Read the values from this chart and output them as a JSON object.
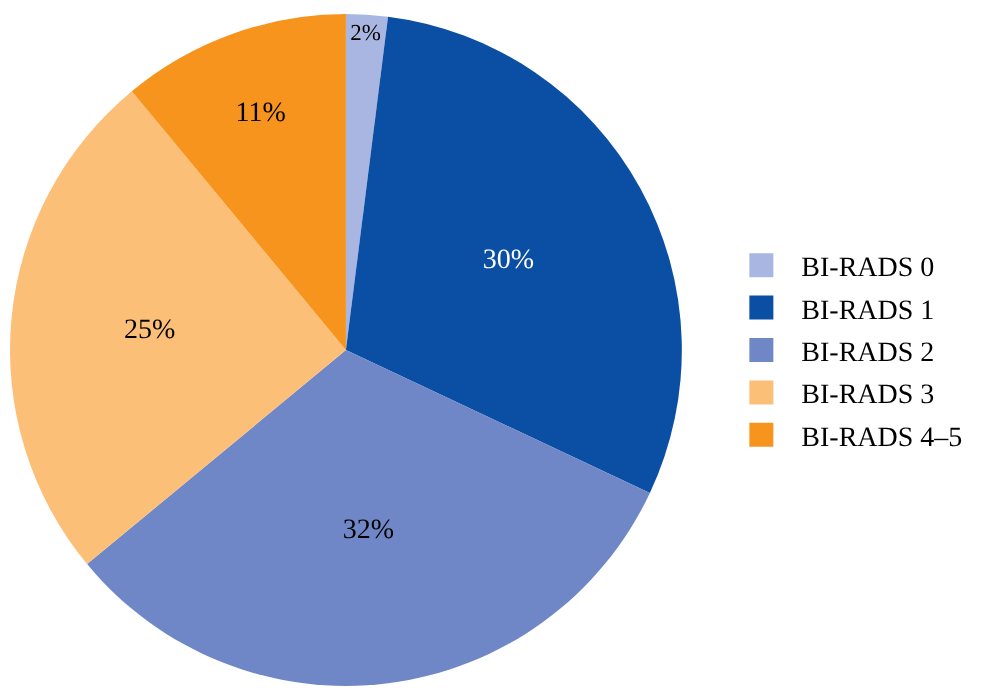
{
  "chart_data": {
    "type": "pie",
    "categories": [
      "BI-RADS 0",
      "BI-RADS 1",
      "BI-RADS 2",
      "BI-RADS 3",
      "BI-RADS 4–5"
    ],
    "values": [
      2,
      30,
      32,
      25,
      11
    ],
    "colors": [
      "#a9b6e2",
      "#0a4fa3",
      "#6f87c7",
      "#fbbf78",
      "#f7941d"
    ],
    "value_labels": [
      "2%",
      "30%",
      "32%",
      "25%",
      "11%"
    ],
    "legend": "right"
  }
}
